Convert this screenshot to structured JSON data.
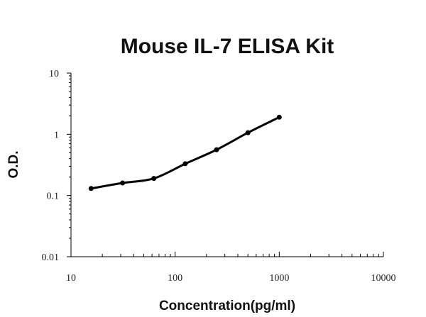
{
  "chart_data": {
    "type": "scatter",
    "title": "Mouse IL-7 ELISA Kit",
    "xlabel": "Concentration(pg/ml)",
    "ylabel": "O.D.",
    "xscale": "log",
    "yscale": "log",
    "xlim": [
      10,
      10000
    ],
    "ylim": [
      0.01,
      10
    ],
    "xticks": [
      "10",
      "100",
      "1000",
      "10000"
    ],
    "yticks": [
      "0.01",
      "0.1",
      "1",
      "10"
    ],
    "grid": false,
    "legend": "none",
    "series": [
      {
        "x": [
          15.6,
          31.25,
          62.5,
          125,
          250,
          500,
          1000
        ],
        "y": [
          0.13,
          0.16,
          0.19,
          0.33,
          0.56,
          1.06,
          1.9
        ]
      }
    ],
    "fit_curve": "smooth",
    "colors": {
      "marker": "#000000",
      "line": "#000000",
      "axis": "#000000"
    }
  }
}
